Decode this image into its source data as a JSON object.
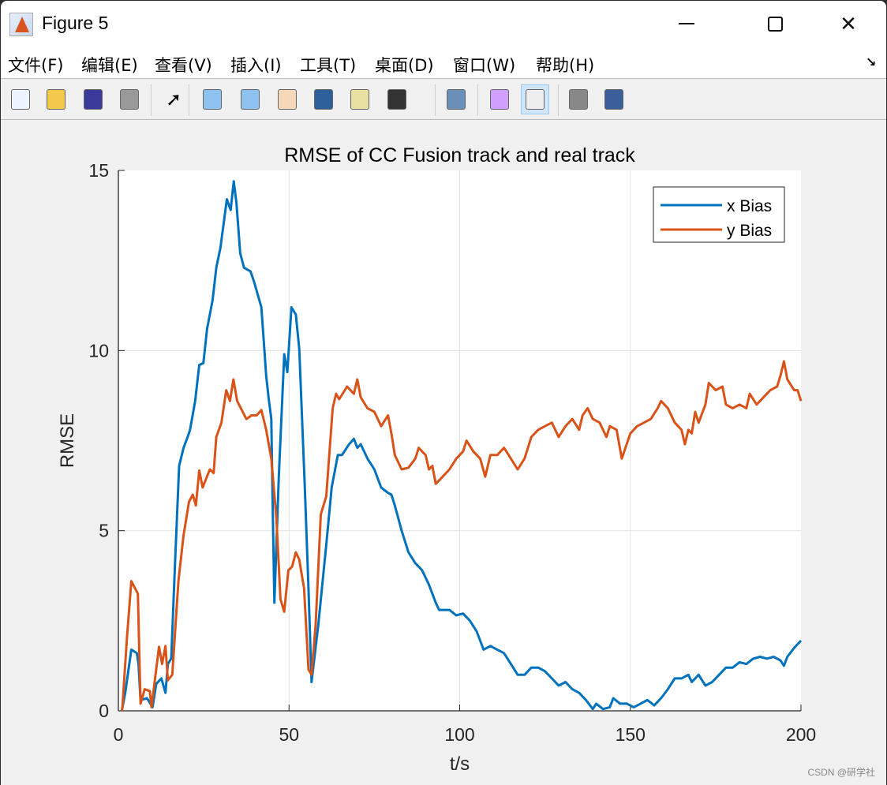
{
  "window": {
    "title": "Figure 5",
    "minimize_icon": "minimize-icon",
    "maximize_icon": "maximize-icon",
    "close_icon": "close-icon"
  },
  "menu": [
    "文件(F)",
    "编辑(E)",
    "查看(V)",
    "插入(I)",
    "工具(T)",
    "桌面(D)",
    "窗口(W)",
    "帮助(H)"
  ],
  "toolbar": [
    "new-figure-icon",
    "open-file-icon",
    "save-icon",
    "print-icon",
    "pointer-icon",
    "zoom-in-icon",
    "zoom-out-icon",
    "pan-hand-icon",
    "rotate-3d-icon",
    "data-cursor-icon",
    "brush-icon",
    "link-plot-icon",
    "colorbar-icon",
    "legend-icon",
    "hide-plot-tools-icon",
    "show-plot-tools-icon"
  ],
  "watermark": "CSDN @研学社",
  "colors": {
    "x": "#0072bd",
    "y": "#d95319"
  },
  "chart_data": {
    "type": "line",
    "title": "RMSE of CC Fusion track and real track",
    "xlabel": "t/s",
    "ylabel": "RMSE",
    "xlim": [
      0,
      200
    ],
    "ylim": [
      0,
      15
    ],
    "xticks": [
      0,
      50,
      100,
      150,
      200
    ],
    "yticks": [
      0,
      5,
      10,
      15
    ],
    "grid": true,
    "legend_position": "top-right",
    "series": [
      {
        "name": "x Bias",
        "points": [
          [
            1,
            0
          ],
          [
            2,
            0.5
          ],
          [
            3.8,
            1.7
          ],
          [
            5.4,
            1.6
          ],
          [
            5.9,
            1.3
          ],
          [
            6.5,
            0.3
          ],
          [
            8.4,
            0.35
          ],
          [
            10,
            0.1
          ],
          [
            11.1,
            0.75
          ],
          [
            12.6,
            0.9
          ],
          [
            13.8,
            0.5
          ],
          [
            14.5,
            1.3
          ],
          [
            15.5,
            1.45
          ],
          [
            16.6,
            4.1
          ],
          [
            17.8,
            6.8
          ],
          [
            19.1,
            7.3
          ],
          [
            20.3,
            7.6
          ],
          [
            21,
            7.8
          ],
          [
            22.5,
            8.6
          ],
          [
            23.7,
            9.6
          ],
          [
            24.9,
            9.65
          ],
          [
            26,
            10.6
          ],
          [
            27.6,
            11.4
          ],
          [
            28.7,
            12.3
          ],
          [
            29.9,
            12.85
          ],
          [
            31.8,
            14.2
          ],
          [
            32.9,
            13.9
          ],
          [
            33.8,
            14.7
          ],
          [
            34.6,
            14.1
          ],
          [
            35.7,
            12.7
          ],
          [
            36.8,
            12.3
          ],
          [
            38.7,
            12.2
          ],
          [
            39.8,
            11.9
          ],
          [
            41,
            11.5
          ],
          [
            41.9,
            11.2
          ],
          [
            42.5,
            10.4
          ],
          [
            43.3,
            9.3
          ],
          [
            44,
            8.7
          ],
          [
            44.8,
            8.1
          ],
          [
            45.2,
            5.75
          ],
          [
            45.7,
            3.0
          ],
          [
            47,
            6.5
          ],
          [
            48.6,
            9.9
          ],
          [
            49.5,
            9.4
          ],
          [
            50.7,
            11.2
          ],
          [
            52,
            11
          ],
          [
            53,
            10.05
          ],
          [
            54.6,
            6.3
          ],
          [
            55.7,
            3.4
          ],
          [
            56.6,
            0.8
          ],
          [
            58.6,
            2.4
          ],
          [
            60.9,
            4.6
          ],
          [
            62.5,
            6.2
          ],
          [
            64.3,
            7.1
          ],
          [
            65.5,
            7.1
          ],
          [
            67.6,
            7.4
          ],
          [
            69,
            7.55
          ],
          [
            70,
            7.3
          ],
          [
            71,
            7.4
          ],
          [
            73,
            7.0
          ],
          [
            75,
            6.7
          ],
          [
            77,
            6.2
          ],
          [
            79,
            6.05
          ],
          [
            80,
            6.0
          ],
          [
            81,
            5.7
          ],
          [
            83,
            5.0
          ],
          [
            85,
            4.4
          ],
          [
            87,
            4.1
          ],
          [
            89,
            3.9
          ],
          [
            91,
            3.5
          ],
          [
            93,
            3.0
          ],
          [
            94,
            2.8
          ],
          [
            97,
            2.8
          ],
          [
            99,
            2.65
          ],
          [
            101,
            2.7
          ],
          [
            103,
            2.5
          ],
          [
            105,
            2.2
          ],
          [
            107,
            1.7
          ],
          [
            109,
            1.8
          ],
          [
            111,
            1.7
          ],
          [
            113,
            1.6
          ],
          [
            115,
            1.3
          ],
          [
            117,
            1.0
          ],
          [
            119,
            1.0
          ],
          [
            121,
            1.2
          ],
          [
            123,
            1.2
          ],
          [
            125,
            1.1
          ],
          [
            127,
            0.9
          ],
          [
            129,
            0.7
          ],
          [
            131,
            0.8
          ],
          [
            133,
            0.6
          ],
          [
            135,
            0.5
          ],
          [
            137,
            0.3
          ],
          [
            139,
            0.05
          ],
          [
            140,
            0.2
          ],
          [
            142,
            0.05
          ],
          [
            144,
            0.1
          ],
          [
            145,
            0.35
          ],
          [
            147,
            0.2
          ],
          [
            149,
            0.2
          ],
          [
            151,
            0.1
          ],
          [
            153,
            0.2
          ],
          [
            155,
            0.3
          ],
          [
            157,
            0.15
          ],
          [
            159,
            0.35
          ],
          [
            161,
            0.6
          ],
          [
            163,
            0.9
          ],
          [
            165,
            0.9
          ],
          [
            167,
            1.0
          ],
          [
            168,
            0.8
          ],
          [
            170,
            1.0
          ],
          [
            172,
            0.7
          ],
          [
            174,
            0.8
          ],
          [
            176,
            1.0
          ],
          [
            178,
            1.2
          ],
          [
            180,
            1.2
          ],
          [
            182,
            1.35
          ],
          [
            184,
            1.3
          ],
          [
            186,
            1.45
          ],
          [
            188,
            1.5
          ],
          [
            190,
            1.45
          ],
          [
            192,
            1.5
          ],
          [
            194,
            1.4
          ],
          [
            195,
            1.25
          ],
          [
            196,
            1.5
          ],
          [
            198,
            1.75
          ],
          [
            200,
            1.95
          ]
        ]
      },
      {
        "name": "y Bias",
        "points": [
          [
            1.1,
            0
          ],
          [
            2.5,
            2.0
          ],
          [
            3.8,
            3.6
          ],
          [
            5.7,
            3.25
          ],
          [
            6.5,
            0.2
          ],
          [
            7.7,
            0.6
          ],
          [
            9.2,
            0.55
          ],
          [
            9.7,
            0.1
          ],
          [
            11.9,
            1.78
          ],
          [
            12.8,
            1.3
          ],
          [
            13.8,
            1.8
          ],
          [
            14.5,
            0.85
          ],
          [
            15.8,
            1.0
          ],
          [
            17.6,
            3.6
          ],
          [
            19.1,
            4.87
          ],
          [
            20.7,
            5.8
          ],
          [
            21.8,
            6.0
          ],
          [
            22.7,
            5.7
          ],
          [
            23.7,
            6.67
          ],
          [
            24.7,
            6.2
          ],
          [
            26.8,
            6.7
          ],
          [
            27.9,
            6.6
          ],
          [
            28.7,
            7.6
          ],
          [
            30.2,
            8.0
          ],
          [
            31.6,
            8.9
          ],
          [
            32.7,
            8.6
          ],
          [
            33.7,
            9.2
          ],
          [
            34.8,
            8.6
          ],
          [
            37.5,
            8.1
          ],
          [
            39,
            8.2
          ],
          [
            40.5,
            8.2
          ],
          [
            41.9,
            8.35
          ],
          [
            43.3,
            7.8
          ],
          [
            44.8,
            7.0
          ],
          [
            46.3,
            5.36
          ],
          [
            47.5,
            3.1
          ],
          [
            48.6,
            2.75
          ],
          [
            49.8,
            3.9
          ],
          [
            50.9,
            4.0
          ],
          [
            52,
            4.4
          ],
          [
            53,
            4.2
          ],
          [
            54.4,
            3.4
          ],
          [
            55.7,
            1.15
          ],
          [
            56.6,
            1.0
          ],
          [
            57.8,
            2.4
          ],
          [
            59.3,
            5.45
          ],
          [
            60.9,
            5.95
          ],
          [
            62.8,
            8.4
          ],
          [
            63.8,
            8.8
          ],
          [
            64.7,
            8.65
          ],
          [
            67,
            9.0
          ],
          [
            69,
            8.8
          ],
          [
            70,
            9.2
          ],
          [
            71,
            8.7
          ],
          [
            73,
            8.4
          ],
          [
            75,
            8.3
          ],
          [
            77,
            7.9
          ],
          [
            79,
            8.2
          ],
          [
            80,
            7.7
          ],
          [
            81,
            7.1
          ],
          [
            83,
            6.7
          ],
          [
            85,
            6.75
          ],
          [
            87,
            7.0
          ],
          [
            88,
            7.3
          ],
          [
            90,
            7.1
          ],
          [
            91,
            6.7
          ],
          [
            92,
            6.8
          ],
          [
            93,
            6.3
          ],
          [
            95,
            6.5
          ],
          [
            97,
            6.7
          ],
          [
            99,
            7.0
          ],
          [
            101,
            7.2
          ],
          [
            102,
            7.5
          ],
          [
            104,
            7.2
          ],
          [
            106,
            7.0
          ],
          [
            107.5,
            6.5
          ],
          [
            109,
            7.1
          ],
          [
            111,
            7.1
          ],
          [
            113,
            7.3
          ],
          [
            115,
            7.0
          ],
          [
            117,
            6.7
          ],
          [
            119,
            7.0
          ],
          [
            121,
            7.6
          ],
          [
            123,
            7.8
          ],
          [
            125,
            7.9
          ],
          [
            127,
            8.0
          ],
          [
            129,
            7.6
          ],
          [
            131,
            7.9
          ],
          [
            133,
            8.1
          ],
          [
            135,
            7.8
          ],
          [
            136,
            8.2
          ],
          [
            137.5,
            8.4
          ],
          [
            139,
            8.1
          ],
          [
            141,
            8.0
          ],
          [
            143,
            7.6
          ],
          [
            144,
            7.9
          ],
          [
            146,
            7.8
          ],
          [
            147.5,
            7.0
          ],
          [
            150,
            7.7
          ],
          [
            152,
            7.9
          ],
          [
            154,
            8.0
          ],
          [
            156,
            8.1
          ],
          [
            158,
            8.4
          ],
          [
            159,
            8.6
          ],
          [
            161,
            8.4
          ],
          [
            163,
            8.0
          ],
          [
            165,
            7.8
          ],
          [
            166,
            7.4
          ],
          [
            167,
            7.8
          ],
          [
            168,
            7.7
          ],
          [
            169,
            8.3
          ],
          [
            170,
            8.0
          ],
          [
            172,
            8.5
          ],
          [
            173,
            9.1
          ],
          [
            175,
            8.9
          ],
          [
            177,
            9.0
          ],
          [
            178,
            8.5
          ],
          [
            180,
            8.4
          ],
          [
            182,
            8.5
          ],
          [
            184,
            8.4
          ],
          [
            185,
            8.8
          ],
          [
            187,
            8.5
          ],
          [
            189,
            8.7
          ],
          [
            191,
            8.9
          ],
          [
            193,
            9.0
          ],
          [
            194,
            9.3
          ],
          [
            195,
            9.7
          ],
          [
            196,
            9.2
          ],
          [
            198,
            8.9
          ],
          [
            199,
            8.9
          ],
          [
            200,
            8.6
          ]
        ]
      }
    ]
  }
}
